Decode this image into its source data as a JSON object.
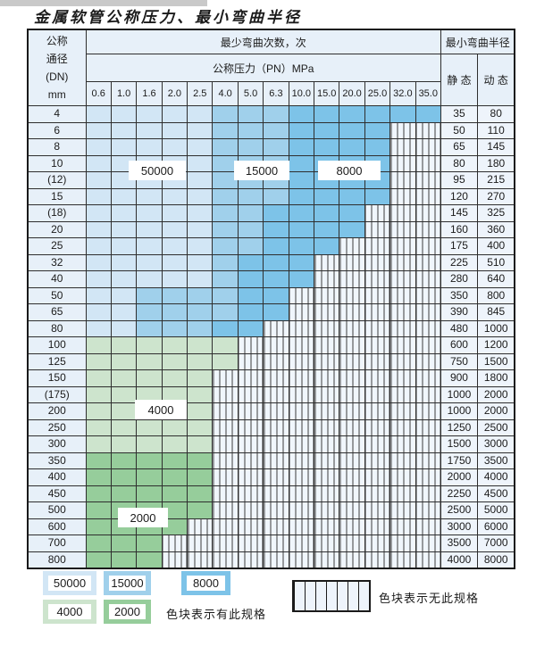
{
  "page": {
    "title": "金属软管公称压力、最小弯曲半径"
  },
  "colors": {
    "b1": "#d2e6f5",
    "b2": "#a0d0eb",
    "b3": "#7dc3e8",
    "g1": "#cde4cd",
    "g2": "#96cd9b",
    "header_bg": "#e7f0f9",
    "grid_line": "#2e2e2e"
  },
  "table": {
    "header": {
      "dn_lines": [
        "公称",
        "通径",
        "(DN)",
        "mm"
      ],
      "bend_cycles": "最少弯曲次数，次",
      "pressure": "公称压力（PN）MPa",
      "min_radius": "最小弯曲半径",
      "static": "静 态",
      "dynamic": "动 态",
      "pressure_columns": [
        "0.6",
        "1.0",
        "1.6",
        "2.0",
        "2.5",
        "4.0",
        "5.0",
        "6.3",
        "10.0",
        "15.0",
        "20.0",
        "25.0",
        "32.0",
        "35.0"
      ]
    },
    "cell_legend_meaning": {
      "b1": "50000次",
      "b2": "15000次",
      "b3": "8000次",
      "g1": "4000次",
      "g2": "2000次",
      "x": "无此规格"
    },
    "overlays": {
      "c50000": "50000",
      "c15000": "15000",
      "c8000": "8000",
      "c4000": "4000",
      "c2000": "2000"
    },
    "rows": [
      {
        "dn": "4",
        "static": "35",
        "dynamic": "80",
        "cells": [
          "b1",
          "b1",
          "b1",
          "b1",
          "b1",
          "b2",
          "b2",
          "b2",
          "b3",
          "b3",
          "b3",
          "b3",
          "b3",
          "b3"
        ]
      },
      {
        "dn": "6",
        "static": "50",
        "dynamic": "110",
        "cells": [
          "b1",
          "b1",
          "b1",
          "b1",
          "b1",
          "b2",
          "b2",
          "b2",
          "b3",
          "b3",
          "b3",
          "b3",
          "x",
          "x"
        ]
      },
      {
        "dn": "8",
        "static": "65",
        "dynamic": "145",
        "cells": [
          "b1",
          "b1",
          "b1",
          "b1",
          "b1",
          "b2",
          "b2",
          "b2",
          "b3",
          "b3",
          "b3",
          "b3",
          "x",
          "x"
        ]
      },
      {
        "dn": "10",
        "static": "80",
        "dynamic": "180",
        "cells": [
          "b1",
          "b1",
          "b1",
          "b1",
          "b1",
          "b2",
          "b2",
          "b2",
          "b3",
          "b3",
          "b3",
          "b3",
          "x",
          "x"
        ]
      },
      {
        "dn": "(12)",
        "static": "95",
        "dynamic": "215",
        "cells": [
          "b1",
          "b1",
          "b1",
          "b1",
          "b1",
          "b2",
          "b2",
          "b2",
          "b3",
          "b3",
          "b3",
          "b3",
          "x",
          "x"
        ]
      },
      {
        "dn": "15",
        "static": "120",
        "dynamic": "270",
        "cells": [
          "b1",
          "b1",
          "b1",
          "b1",
          "b1",
          "b2",
          "b2",
          "b2",
          "b3",
          "b3",
          "b3",
          "b3",
          "x",
          "x"
        ]
      },
      {
        "dn": "(18)",
        "static": "145",
        "dynamic": "325",
        "cells": [
          "b1",
          "b1",
          "b1",
          "b1",
          "b1",
          "b2",
          "b2",
          "b3",
          "b3",
          "b3",
          "b3",
          "x",
          "x",
          "x"
        ]
      },
      {
        "dn": "20",
        "static": "160",
        "dynamic": "360",
        "cells": [
          "b1",
          "b1",
          "b1",
          "b1",
          "b1",
          "b2",
          "b2",
          "b3",
          "b3",
          "b3",
          "b3",
          "x",
          "x",
          "x"
        ]
      },
      {
        "dn": "25",
        "static": "175",
        "dynamic": "400",
        "cells": [
          "b1",
          "b1",
          "b1",
          "b1",
          "b1",
          "b2",
          "b2",
          "b3",
          "b3",
          "b3",
          "x",
          "x",
          "x",
          "x"
        ]
      },
      {
        "dn": "32",
        "static": "225",
        "dynamic": "510",
        "cells": [
          "b1",
          "b1",
          "b1",
          "b1",
          "b1",
          "b2",
          "b3",
          "b3",
          "b3",
          "x",
          "x",
          "x",
          "x",
          "x"
        ]
      },
      {
        "dn": "40",
        "static": "280",
        "dynamic": "640",
        "cells": [
          "b1",
          "b1",
          "b1",
          "b1",
          "b1",
          "b2",
          "b3",
          "b3",
          "b3",
          "x",
          "x",
          "x",
          "x",
          "x"
        ]
      },
      {
        "dn": "50",
        "static": "350",
        "dynamic": "800",
        "cells": [
          "b1",
          "b1",
          "b2",
          "b2",
          "b2",
          "b2",
          "b3",
          "b3",
          "x",
          "x",
          "x",
          "x",
          "x",
          "x"
        ]
      },
      {
        "dn": "65",
        "static": "390",
        "dynamic": "845",
        "cells": [
          "b1",
          "b1",
          "b2",
          "b2",
          "b2",
          "b2",
          "b3",
          "b3",
          "x",
          "x",
          "x",
          "x",
          "x",
          "x"
        ]
      },
      {
        "dn": "80",
        "static": "480",
        "dynamic": "1000",
        "cells": [
          "b1",
          "b1",
          "b2",
          "b2",
          "b2",
          "b3",
          "b3",
          "x",
          "x",
          "x",
          "x",
          "x",
          "x",
          "x"
        ]
      },
      {
        "dn": "100",
        "static": "600",
        "dynamic": "1200",
        "cells": [
          "g1",
          "g1",
          "g1",
          "g1",
          "g1",
          "g1",
          "x",
          "x",
          "x",
          "x",
          "x",
          "x",
          "x",
          "x"
        ]
      },
      {
        "dn": "125",
        "static": "750",
        "dynamic": "1500",
        "cells": [
          "g1",
          "g1",
          "g1",
          "g1",
          "g1",
          "g1",
          "x",
          "x",
          "x",
          "x",
          "x",
          "x",
          "x",
          "x"
        ]
      },
      {
        "dn": "150",
        "static": "900",
        "dynamic": "1800",
        "cells": [
          "g1",
          "g1",
          "g1",
          "g1",
          "g1",
          "x",
          "x",
          "x",
          "x",
          "x",
          "x",
          "x",
          "x",
          "x"
        ]
      },
      {
        "dn": "(175)",
        "static": "1000",
        "dynamic": "2000",
        "cells": [
          "g1",
          "g1",
          "g1",
          "g1",
          "g1",
          "x",
          "x",
          "x",
          "x",
          "x",
          "x",
          "x",
          "x",
          "x"
        ]
      },
      {
        "dn": "200",
        "static": "1000",
        "dynamic": "2000",
        "cells": [
          "g1",
          "g1",
          "g1",
          "g1",
          "g1",
          "x",
          "x",
          "x",
          "x",
          "x",
          "x",
          "x",
          "x",
          "x"
        ]
      },
      {
        "dn": "250",
        "static": "1250",
        "dynamic": "2500",
        "cells": [
          "g1",
          "g1",
          "g1",
          "g1",
          "g1",
          "x",
          "x",
          "x",
          "x",
          "x",
          "x",
          "x",
          "x",
          "x"
        ]
      },
      {
        "dn": "300",
        "static": "1500",
        "dynamic": "3000",
        "cells": [
          "g1",
          "g1",
          "g1",
          "g1",
          "g1",
          "x",
          "x",
          "x",
          "x",
          "x",
          "x",
          "x",
          "x",
          "x"
        ]
      },
      {
        "dn": "350",
        "static": "1750",
        "dynamic": "3500",
        "cells": [
          "g2",
          "g2",
          "g2",
          "g2",
          "g2",
          "x",
          "x",
          "x",
          "x",
          "x",
          "x",
          "x",
          "x",
          "x"
        ]
      },
      {
        "dn": "400",
        "static": "2000",
        "dynamic": "4000",
        "cells": [
          "g2",
          "g2",
          "g2",
          "g2",
          "g2",
          "x",
          "x",
          "x",
          "x",
          "x",
          "x",
          "x",
          "x",
          "x"
        ]
      },
      {
        "dn": "450",
        "static": "2250",
        "dynamic": "4500",
        "cells": [
          "g2",
          "g2",
          "g2",
          "g2",
          "g2",
          "x",
          "x",
          "x",
          "x",
          "x",
          "x",
          "x",
          "x",
          "x"
        ]
      },
      {
        "dn": "500",
        "static": "2500",
        "dynamic": "5000",
        "cells": [
          "g2",
          "g2",
          "g2",
          "g2",
          "g2",
          "x",
          "x",
          "x",
          "x",
          "x",
          "x",
          "x",
          "x",
          "x"
        ]
      },
      {
        "dn": "600",
        "static": "3000",
        "dynamic": "6000",
        "cells": [
          "g2",
          "g2",
          "g2",
          "g2",
          "x",
          "x",
          "x",
          "x",
          "x",
          "x",
          "x",
          "x",
          "x",
          "x"
        ]
      },
      {
        "dn": "700",
        "static": "3500",
        "dynamic": "7000",
        "cells": [
          "g2",
          "g2",
          "g2",
          "x",
          "x",
          "x",
          "x",
          "x",
          "x",
          "x",
          "x",
          "x",
          "x",
          "x"
        ]
      },
      {
        "dn": "800",
        "static": "4000",
        "dynamic": "8000",
        "cells": [
          "g2",
          "g2",
          "g2",
          "x",
          "x",
          "x",
          "x",
          "x",
          "x",
          "x",
          "x",
          "x",
          "x",
          "x"
        ]
      }
    ]
  },
  "legend": {
    "items": [
      {
        "value": "50000",
        "color_key": "b1"
      },
      {
        "value": "15000",
        "color_key": "b2"
      },
      {
        "value": "8000",
        "color_key": "b3"
      },
      {
        "value": "4000",
        "color_key": "g1"
      },
      {
        "value": "2000",
        "color_key": "g2"
      }
    ],
    "has_spec_note": "色块表示有此规格",
    "no_spec_note": "色块表示无此规格"
  }
}
